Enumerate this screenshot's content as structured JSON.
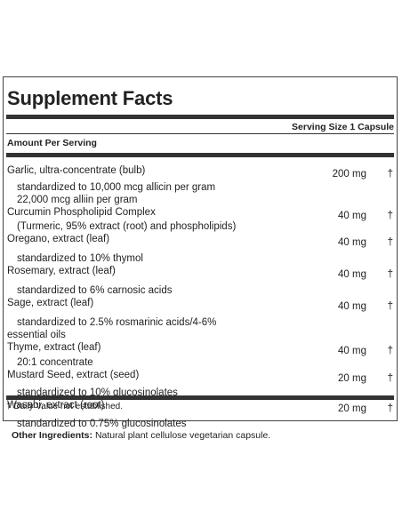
{
  "title": "Supplement Facts",
  "serving_size": "Serving Size 1 Capsule",
  "amount_per_serving": "Amount Per Serving",
  "ingredients": [
    {
      "name": "Garlic, ultra-concentrate (bulb)",
      "amount": "200 mg",
      "dv": "†",
      "details": [
        "standardized to 10,000 mcg allicin per gram",
        "22,000 mcg alliin per gram"
      ]
    },
    {
      "name": "Curcumin Phospholipid Complex",
      "amount": "40 mg",
      "dv": "†",
      "details": [
        "(Turmeric, 95% extract (root) and phospholipids)"
      ]
    },
    {
      "name": "Oregano, extract (leaf)",
      "amount": "40 mg",
      "dv": "†",
      "details": [
        "standardized to 10% thymol"
      ]
    },
    {
      "name": "Rosemary, extract (leaf)",
      "amount": "40 mg",
      "dv": "†",
      "details": [
        "standardized to 6% carnosic acids"
      ]
    },
    {
      "name": "Sage, extract (leaf)",
      "amount": "40 mg",
      "dv": "†",
      "details": [
        "standardized to 2.5% rosmarinic acids/4-6% essential oils"
      ]
    },
    {
      "name": "Thyme, extract (leaf)",
      "amount": "40 mg",
      "dv": "†",
      "details": [
        "20:1 concentrate"
      ]
    },
    {
      "name": "Mustard Seed, extract (seed)",
      "amount": "20 mg",
      "dv": "†",
      "details": [
        "standardized to 10% glucosinolates"
      ]
    },
    {
      "name": "Wasabi, extract (root)",
      "amount": "20 mg",
      "dv": "†",
      "details": [
        "standardized to 0.75% glucosinolates"
      ]
    }
  ],
  "footnote": "† Daily Value not established.",
  "other_ingredients": {
    "label": "Other Ingredients:",
    "text": "Natural plant cellulose vegetarian capsule."
  }
}
